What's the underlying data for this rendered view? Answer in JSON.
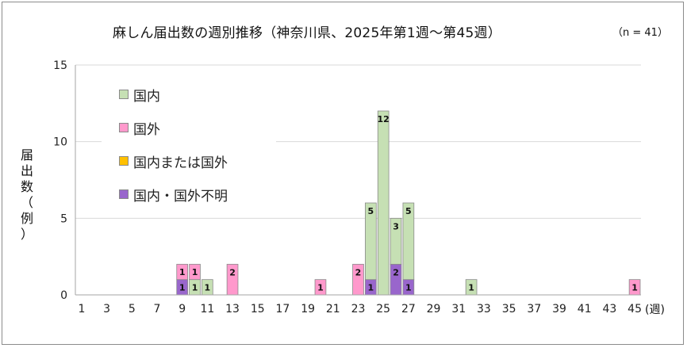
{
  "chart_data": {
    "type": "bar",
    "stacked": true,
    "title": "麻しん届出数の週別推移（神奈川県、2025年第1週～第45週）",
    "note": "（n = 41）",
    "ylabel": "届出数（例）",
    "xunit": "(週)",
    "ylim": [
      0,
      15
    ],
    "yticks": [
      0,
      5,
      10,
      15
    ],
    "xticks": [
      1,
      3,
      5,
      7,
      9,
      11,
      13,
      15,
      17,
      19,
      21,
      23,
      25,
      27,
      29,
      31,
      33,
      35,
      37,
      39,
      41,
      43,
      45
    ],
    "weeks": {
      "first": 1,
      "last": 45
    },
    "grid": true,
    "legend_position": "top-left",
    "series": [
      {
        "name": "国内・国外不明",
        "color": "#9966cc",
        "points": [
          {
            "week": 9,
            "value": 1
          },
          {
            "week": 24,
            "value": 1
          },
          {
            "week": 26,
            "value": 2
          },
          {
            "week": 27,
            "value": 1
          }
        ]
      },
      {
        "name": "国内",
        "color": "#c6e0b4",
        "points": [
          {
            "week": 10,
            "value": 1
          },
          {
            "week": 11,
            "value": 1
          },
          {
            "week": 24,
            "value": 5
          },
          {
            "week": 25,
            "value": 12
          },
          {
            "week": 26,
            "value": 3
          },
          {
            "week": 27,
            "value": 5
          },
          {
            "week": 32,
            "value": 1
          }
        ]
      },
      {
        "name": "国外",
        "color": "#ff99cc",
        "points": [
          {
            "week": 9,
            "value": 1
          },
          {
            "week": 10,
            "value": 1
          },
          {
            "week": 13,
            "value": 2
          },
          {
            "week": 20,
            "value": 1
          },
          {
            "week": 23,
            "value": 2
          },
          {
            "week": 45,
            "value": 1
          }
        ]
      },
      {
        "name": "国内または国外",
        "color": "#ffc000",
        "points": []
      }
    ],
    "legend_order": [
      "国内",
      "国外",
      "国内または国外",
      "国内・国外不明"
    ]
  }
}
